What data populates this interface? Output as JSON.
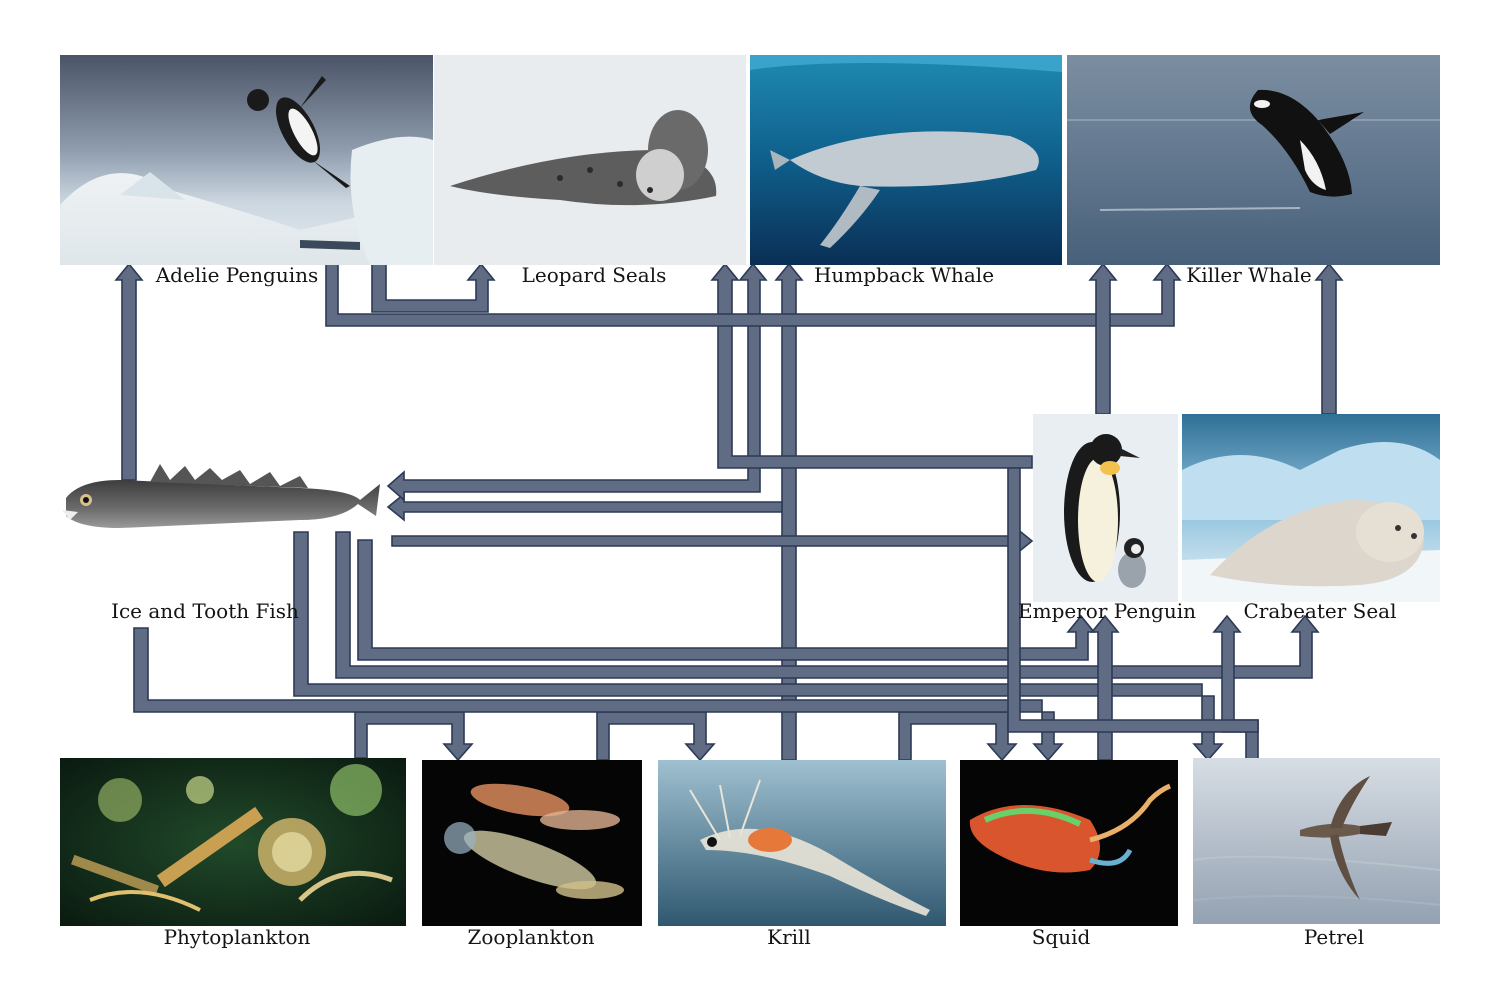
{
  "organisms": {
    "adelie_penguins": "Adelie Penguins",
    "leopard_seals": "Leopard Seals",
    "humpback_whale": "Humpback Whale",
    "killer_whale": "Killer Whale",
    "ice_tooth_fish": "Ice and Tooth Fish",
    "emperor_penguin": "Emperor Penguin",
    "crabeater_seal": "Crabeater Seal",
    "phytoplankton": "Phytoplankton",
    "zooplankton": "Zooplankton",
    "krill": "Krill",
    "squid": "Squid",
    "petrel": "Petrel"
  },
  "links": [
    {
      "from": "Phytoplankton",
      "to": "Zooplankton"
    },
    {
      "from": "Zooplankton",
      "to": "Krill"
    },
    {
      "from": "Krill",
      "to": "Squid"
    },
    {
      "from": "Krill",
      "to": "Humpback Whale"
    },
    {
      "from": "Krill",
      "to": "Ice and Tooth Fish"
    },
    {
      "from": "Krill",
      "to": "Crabeater Seal"
    },
    {
      "from": "Krill",
      "to": "Adelie Penguins"
    },
    {
      "from": "Squid",
      "to": "Emperor Penguin"
    },
    {
      "from": "Squid",
      "to": "Petrel"
    },
    {
      "from": "Ice and Tooth Fish",
      "to": "Adelie Penguins"
    },
    {
      "from": "Ice and Tooth Fish",
      "to": "Emperor Penguin"
    },
    {
      "from": "Ice and Tooth Fish",
      "to": "Crabeater Seal"
    },
    {
      "from": "Ice and Tooth Fish",
      "to": "Squid"
    },
    {
      "from": "Ice and Tooth Fish",
      "to": "Petrel"
    },
    {
      "from": "Adelie Penguins",
      "to": "Leopard Seals"
    },
    {
      "from": "Adelie Penguins",
      "to": "Killer Whale"
    },
    {
      "from": "Emperor Penguin",
      "to": "Killer Whale"
    },
    {
      "from": "Emperor Penguin",
      "to": "Leopard Seals"
    },
    {
      "from": "Crabeater Seal",
      "to": "Killer Whale"
    },
    {
      "from": "Petrel",
      "to": "Leopard Seals"
    }
  ],
  "colors": {
    "arrow_fill": "#5f6c84",
    "arrow_stroke": "#2c3a56"
  }
}
